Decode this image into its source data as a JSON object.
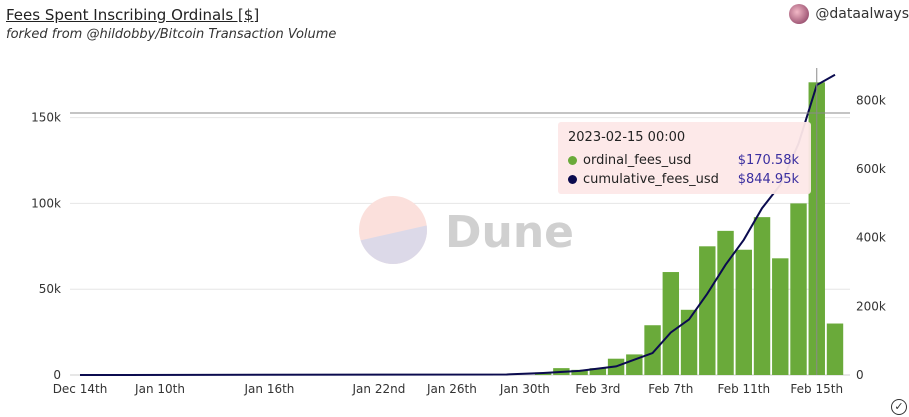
{
  "header": {
    "title": "Fees Spent Inscribing Ordinals [$]",
    "subtitle": "forked from @hildobby/Bitcoin Transaction Volume",
    "username": "@dataalways"
  },
  "watermark": "Dune",
  "tooltip": {
    "date": "2023-02-15 00:00",
    "rows": [
      {
        "label": "ordinal_fees_usd",
        "value": "$170.58k",
        "color": "#6aaa3a"
      },
      {
        "label": "cumulative_fees_usd",
        "value": "$844.95k",
        "color": "#0b0b4f"
      }
    ]
  },
  "chart_data": {
    "type": "bar+line",
    "x_tick_labels": [
      "Dec 14th",
      "Jan 10th",
      "Jan 16th",
      "Jan 22nd",
      "Jan 26th",
      "Jan 30th",
      "Feb 3rd",
      "Feb 7th",
      "Feb 11th",
      "Feb 15th"
    ],
    "y_left": {
      "ticks": [
        "0",
        "50k",
        "100k",
        "150k"
      ],
      "lim": [
        0,
        176000
      ]
    },
    "y_right": {
      "ticks": [
        "0",
        "200k",
        "400k",
        "600k",
        "800k"
      ],
      "lim": [
        0,
        880000
      ]
    },
    "series": [
      {
        "name": "ordinal_fees_usd",
        "type": "bar",
        "axis": "left",
        "color": "#6aaa3a",
        "x": [
          "2023-01-31",
          "2023-02-01",
          "2023-02-02",
          "2023-02-03",
          "2023-02-04",
          "2023-02-05",
          "2023-02-06",
          "2023-02-07",
          "2023-02-08",
          "2023-02-09",
          "2023-02-10",
          "2023-02-11",
          "2023-02-12",
          "2023-02-13",
          "2023-02-14",
          "2023-02-15",
          "2023-02-16"
        ],
        "values": [
          1500,
          4000,
          3000,
          4000,
          9500,
          12000,
          29000,
          60000,
          38000,
          75000,
          84000,
          73000,
          92000,
          68000,
          100000,
          170580,
          30000
        ]
      },
      {
        "name": "cumulative_fees_usd",
        "type": "line",
        "axis": "right",
        "color": "#0b0b4f",
        "x": [
          "2022-12-14",
          "2023-01-29",
          "2023-01-31",
          "2023-02-02",
          "2023-02-04",
          "2023-02-06",
          "2023-02-07",
          "2023-02-08",
          "2023-02-09",
          "2023-02-10",
          "2023-02-11",
          "2023-02-12",
          "2023-02-13",
          "2023-02-14",
          "2023-02-15",
          "2023-02-16"
        ],
        "values": [
          0,
          1500,
          6000,
          12000,
          25000,
          64000,
          124000,
          162000,
          237000,
          321000,
          394000,
          486000,
          554000,
          674000,
          844950,
          875000
        ]
      }
    ]
  }
}
